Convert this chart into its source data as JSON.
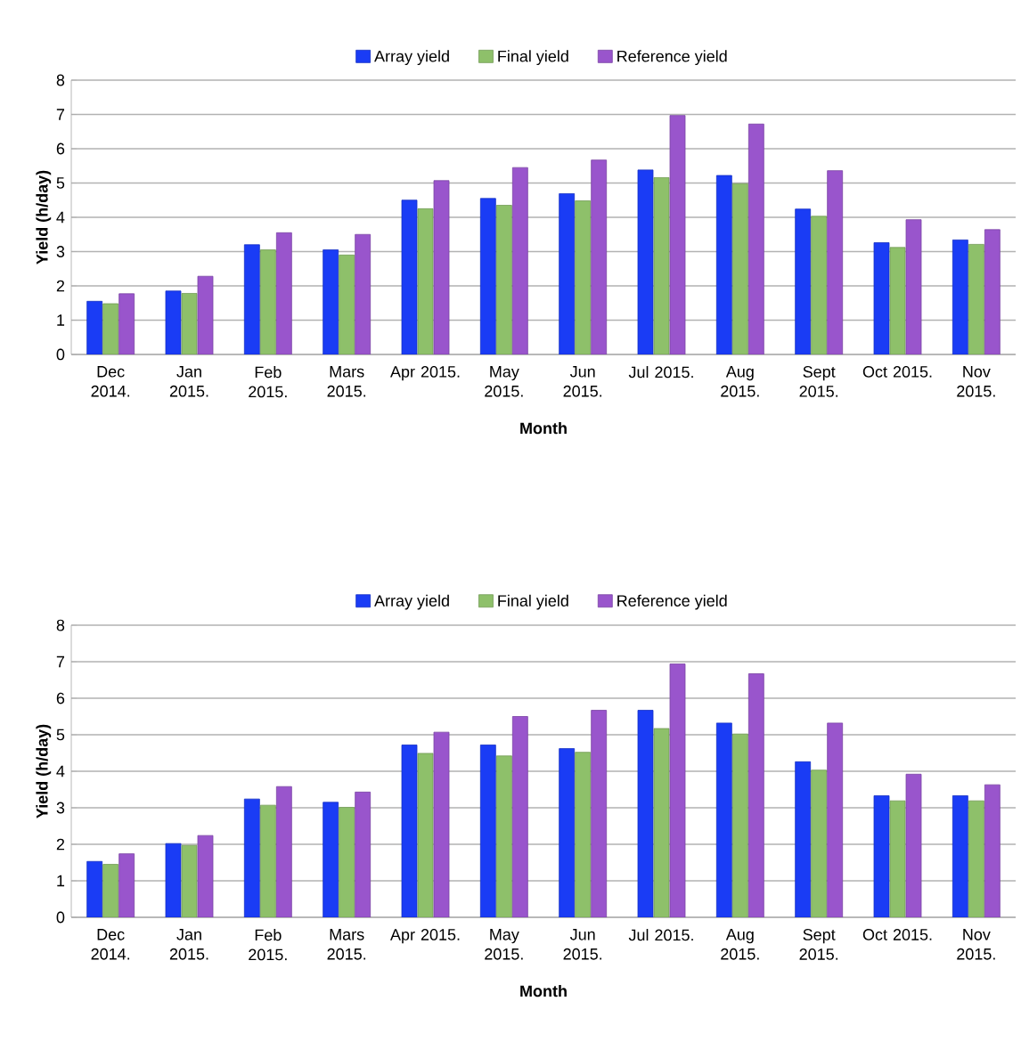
{
  "chart_data": [
    {
      "type": "bar",
      "xlabel": "Month",
      "ylabel": "Yield  (h/day)",
      "categories": [
        "Dec 2014.",
        "Jan 2015.",
        "Feb 2015.",
        "Mars 2015.",
        "Apr 2015.",
        "May 2015.",
        "Jun 2015.",
        "Jul 2015.",
        "Aug 2015.",
        "Sept 2015.",
        "Oct 2015.",
        "Nov 2015."
      ],
      "series": [
        {
          "name": "Array yield",
          "color": "#1a3cf5",
          "values": [
            1.55,
            1.85,
            3.2,
            3.05,
            4.5,
            4.55,
            4.69,
            5.38,
            5.22,
            4.24,
            3.26,
            3.34
          ]
        },
        {
          "name": "Final yield",
          "color": "#8ec06a",
          "values": [
            1.48,
            1.78,
            3.05,
            2.9,
            4.25,
            4.35,
            4.48,
            5.16,
            4.98,
            4.03,
            3.12,
            3.21
          ]
        },
        {
          "name": "Reference  yield",
          "color": "#9955cc",
          "values": [
            1.77,
            2.28,
            3.55,
            3.5,
            5.07,
            5.45,
            5.67,
            6.97,
            6.72,
            5.36,
            3.93,
            3.64
          ]
        }
      ],
      "ylim": [
        0,
        8
      ],
      "yticks": [
        0,
        1,
        2,
        3,
        4,
        5,
        6,
        7,
        8
      ],
      "grid": "y",
      "legend": "top"
    },
    {
      "type": "bar",
      "xlabel": "Month",
      "ylabel": "Yield  (h/day)",
      "categories": [
        "Dec 2014.",
        "Jan 2015.",
        "Feb 2015.",
        "Mars 2015.",
        "Apr 2015.",
        "May 2015.",
        "Jun 2015.",
        "Jul 2015.",
        "Aug 2015.",
        "Sept 2015.",
        "Oct 2015.",
        "Nov 2015."
      ],
      "series": [
        {
          "name": "Array yield",
          "color": "#1a3cf5",
          "values": [
            1.53,
            2.02,
            3.24,
            3.15,
            4.72,
            4.72,
            4.62,
            5.67,
            5.32,
            4.26,
            3.33,
            3.33
          ]
        },
        {
          "name": "Final yield",
          "color": "#8ec06a",
          "values": [
            1.45,
            1.97,
            3.07,
            3.01,
            4.49,
            4.42,
            4.52,
            5.17,
            5.02,
            4.03,
            3.19,
            3.19
          ]
        },
        {
          "name": "Reference  yield",
          "color": "#9955cc",
          "values": [
            1.74,
            2.24,
            3.58,
            3.43,
            5.07,
            5.5,
            5.67,
            6.94,
            6.67,
            5.32,
            3.92,
            3.63
          ]
        }
      ],
      "ylim": [
        0,
        8
      ],
      "yticks": [
        0,
        1,
        2,
        3,
        4,
        5,
        6,
        7,
        8
      ],
      "grid": "y",
      "legend": "top"
    }
  ]
}
